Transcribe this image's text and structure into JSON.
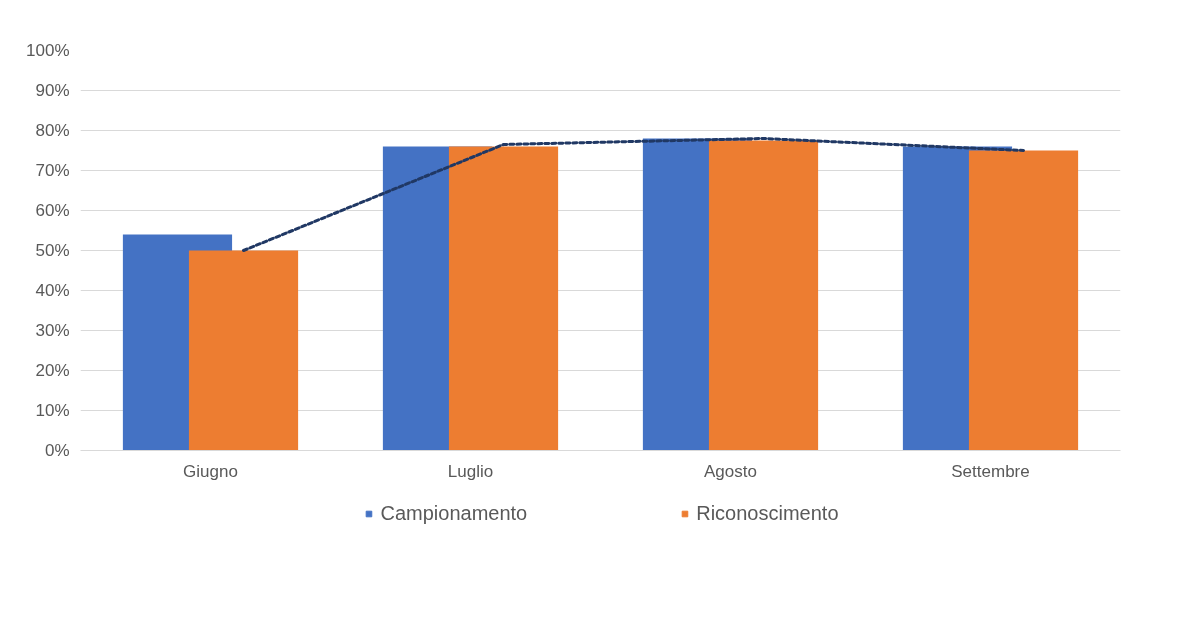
{
  "chart_data": {
    "type": "bar",
    "categories": [
      "Giugno",
      "Luglio",
      "Agosto",
      "Settembre"
    ],
    "series": [
      {
        "name": "Campionamento",
        "color": "#4472c4",
        "values": [
          54,
          76,
          78,
          76
        ]
      },
      {
        "name": "Riconoscimento",
        "color": "#ed7d31",
        "values": [
          50,
          76,
          77.5,
          75
        ]
      },
      {
        "type": "line",
        "color": "#203864",
        "line_style": "dashed",
        "values": [
          50,
          76.5,
          78,
          75
        ]
      }
    ],
    "ylim": [
      0,
      100
    ],
    "yticks": [
      {
        "value": 0,
        "label": "0%"
      },
      {
        "value": 10,
        "label": "10%"
      },
      {
        "value": 20,
        "label": "20%"
      },
      {
        "value": 30,
        "label": "30%"
      },
      {
        "value": 40,
        "label": "40%"
      },
      {
        "value": 50,
        "label": "50%"
      },
      {
        "value": 60,
        "label": "60%"
      },
      {
        "value": 70,
        "label": "70%"
      },
      {
        "value": 80,
        "label": "80%"
      },
      {
        "value": 90,
        "label": "90%"
      },
      {
        "value": 100,
        "label": "100%"
      }
    ],
    "grid": "y",
    "legend": "bottom"
  }
}
